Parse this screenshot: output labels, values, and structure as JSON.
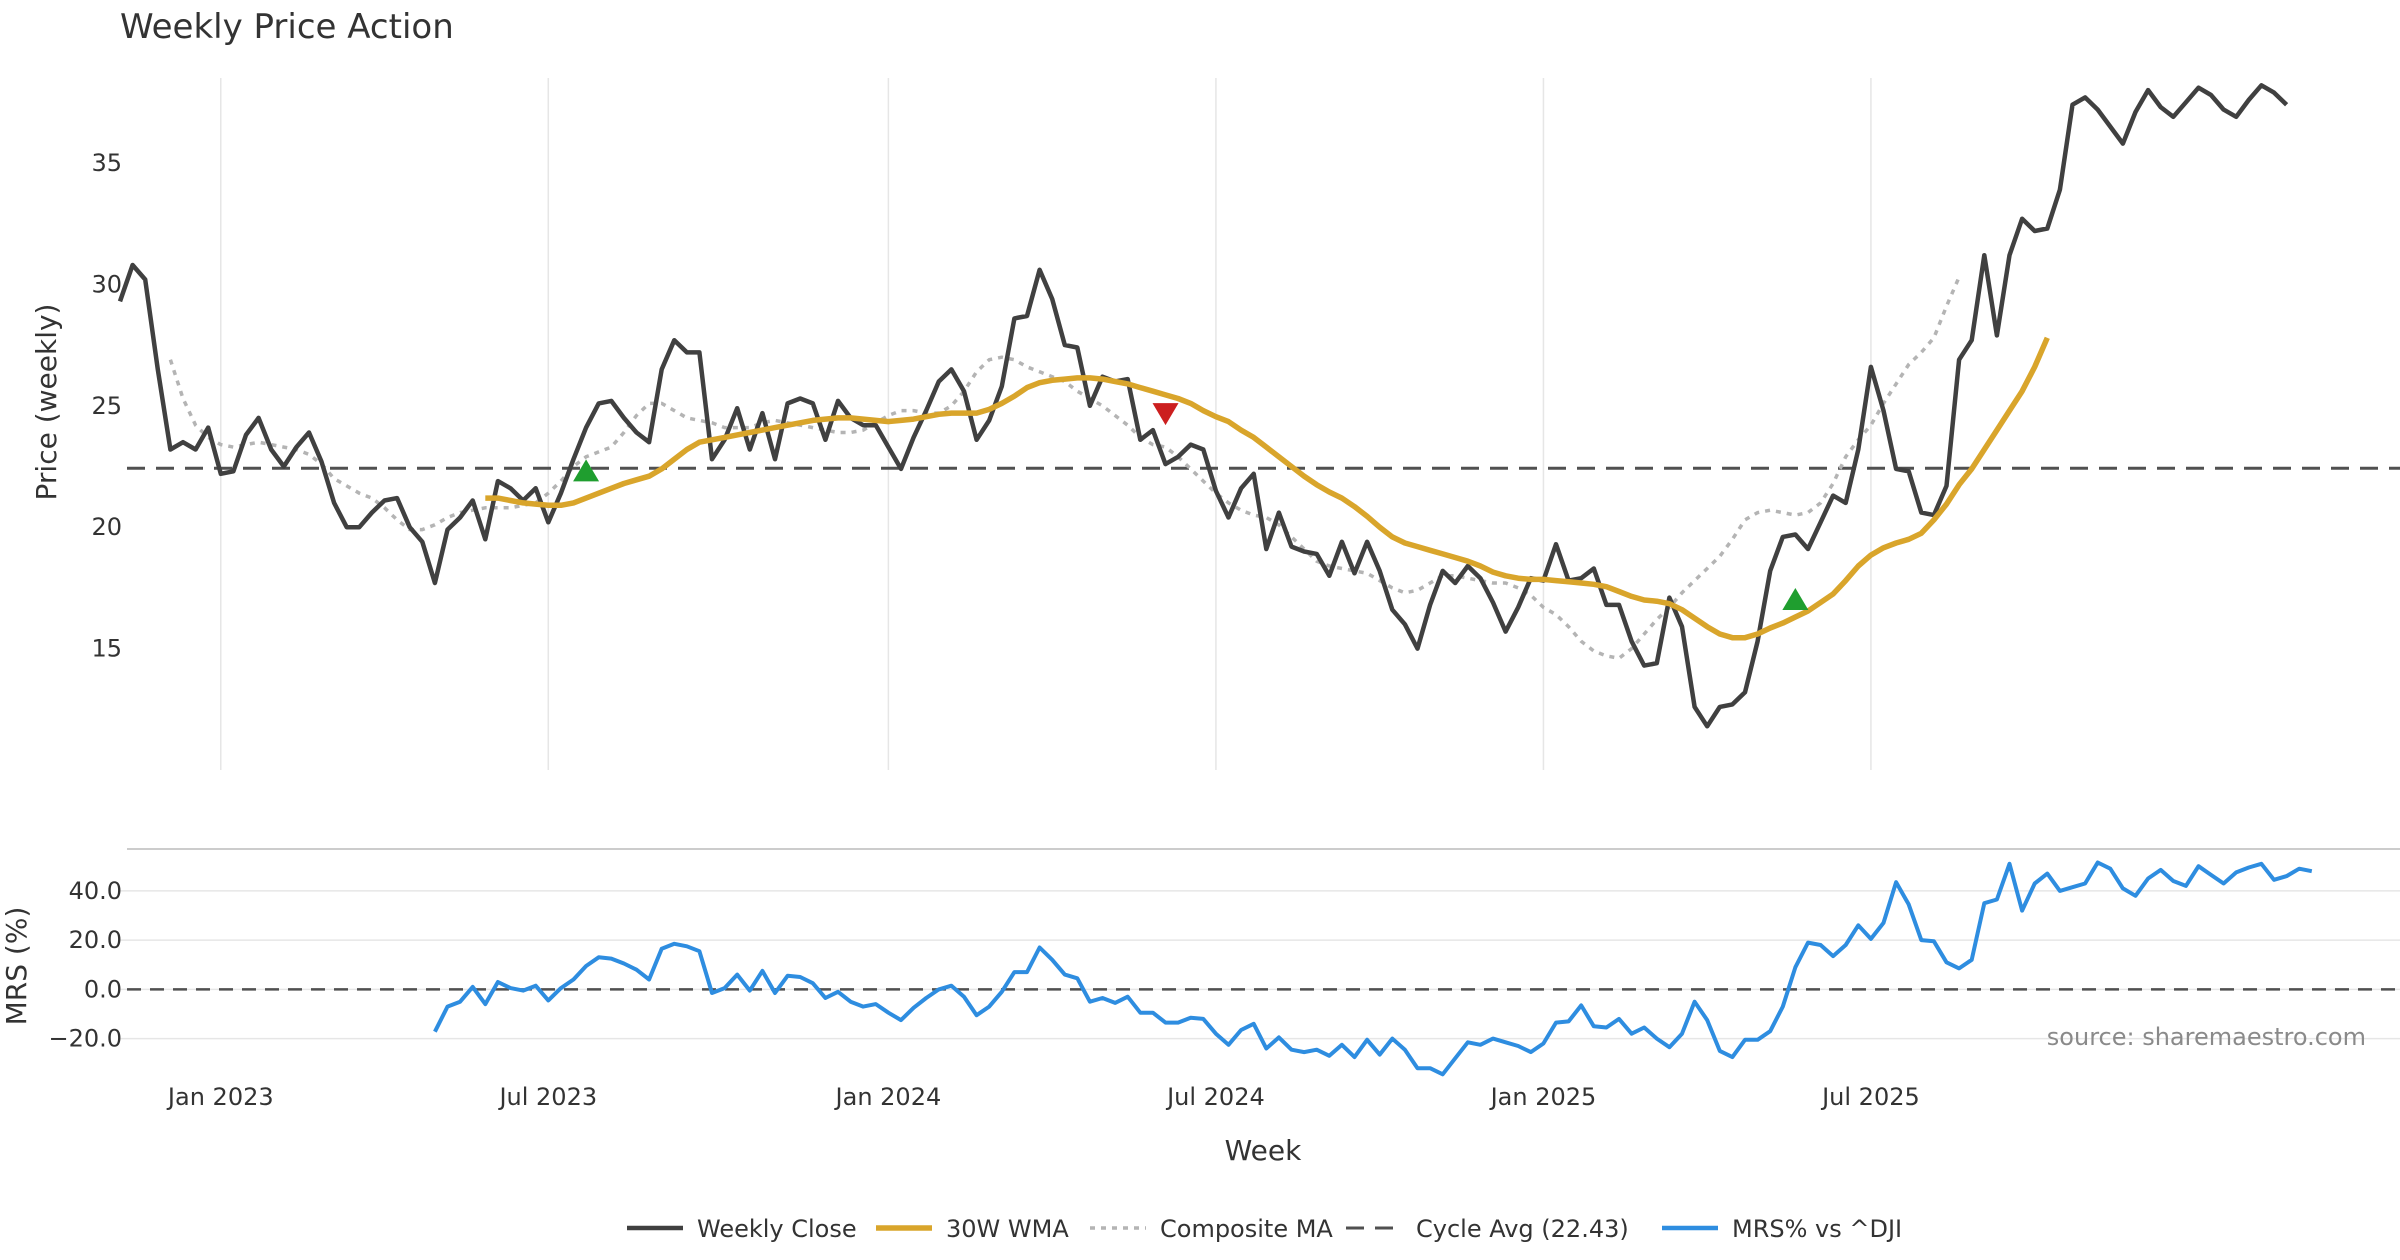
{
  "colors": {
    "close": "#404040",
    "wma": "#d9a52b",
    "composite": "#b4b4b4",
    "cycle": "#505050",
    "mrs": "#2e8de0",
    "buy": "#1f9e2f",
    "sell": "#cc1f1f",
    "grid": "#e6e6e6",
    "axis": "#cccccc"
  },
  "chart_data": [
    {
      "type": "line",
      "title": "Weekly Price Action",
      "xlabel": "Week",
      "ylabel": "Price (weekly)",
      "ylim": [
        10,
        38.5
      ],
      "yticks": [
        15,
        20,
        25,
        30,
        35
      ],
      "x_week_range": [
        0,
        181
      ],
      "cycle_avg": 22.43,
      "series": [
        {
          "name": "Weekly Close",
          "values": [
            29.3,
            30.8,
            30.2,
            26.5,
            23.2,
            23.5,
            23.2,
            24.1,
            22.2,
            22.3,
            23.8,
            24.5,
            23.2,
            22.5,
            23.3,
            23.9,
            22.7,
            21.0,
            20.0,
            20.0,
            20.6,
            21.1,
            21.2,
            20.0,
            19.4,
            17.7,
            19.9,
            20.4,
            21.1,
            19.5,
            21.9,
            21.6,
            21.1,
            21.6,
            20.2,
            21.4,
            22.8,
            24.1,
            25.1,
            25.2,
            24.5,
            23.9,
            23.5,
            26.5,
            27.7,
            27.2,
            27.2,
            22.8,
            23.6,
            24.9,
            23.2,
            24.7,
            22.8,
            25.1,
            25.3,
            25.1,
            23.6,
            25.2,
            24.5,
            24.2,
            24.2,
            23.3,
            22.4,
            23.7,
            24.8,
            26.0,
            26.5,
            25.6,
            23.6,
            24.4,
            25.8,
            28.6,
            28.7,
            30.6,
            29.4,
            27.5,
            27.4,
            25.0,
            26.2,
            26.0,
            26.1,
            23.6,
            24.0,
            22.6,
            22.9,
            23.4,
            23.2,
            21.5,
            20.4,
            21.6,
            22.2,
            19.1,
            20.6,
            19.2,
            19.0,
            18.9,
            18.0,
            19.4,
            18.1,
            19.4,
            18.2,
            16.6,
            16.0,
            15.0,
            16.8,
            18.2,
            17.7,
            18.4,
            17.9,
            16.9,
            15.7,
            16.7,
            17.9,
            17.8,
            19.3,
            17.8,
            17.9,
            18.3,
            16.8,
            16.8,
            15.3,
            14.3,
            14.4,
            17.1,
            15.9,
            12.6,
            11.8,
            12.6,
            12.7,
            13.2,
            15.3,
            18.2,
            19.6,
            19.7,
            19.1,
            20.2,
            21.3,
            21.0,
            23.2,
            26.6,
            24.8,
            22.4,
            22.3,
            20.6,
            20.5,
            21.7,
            26.9,
            27.7,
            31.2,
            27.9,
            31.2,
            32.7,
            32.2,
            32.3,
            33.9,
            37.4,
            37.7,
            37.2,
            36.5,
            35.8,
            37.1,
            38.0,
            37.3,
            36.9,
            37.5,
            38.1,
            37.8,
            37.2,
            36.9,
            37.6,
            38.2,
            37.9,
            37.4
          ]
        },
        {
          "name": "30W WMA",
          "start_index": 29,
          "values": [
            21.2,
            21.2,
            21.1,
            21.0,
            20.95,
            20.9,
            20.9,
            21.0,
            21.2,
            21.4,
            21.6,
            21.8,
            21.95,
            22.1,
            22.4,
            22.8,
            23.2,
            23.5,
            23.6,
            23.7,
            23.8,
            23.9,
            24.0,
            24.1,
            24.2,
            24.3,
            24.4,
            24.45,
            24.5,
            24.5,
            24.45,
            24.4,
            24.35,
            24.4,
            24.45,
            24.55,
            24.65,
            24.7,
            24.7,
            24.7,
            24.85,
            25.1,
            25.4,
            25.75,
            25.95,
            26.05,
            26.1,
            26.15,
            26.15,
            26.1,
            26.0,
            25.9,
            25.75,
            25.6,
            25.45,
            25.3,
            25.1,
            24.8,
            24.55,
            24.35,
            24.0,
            23.7,
            23.3,
            22.9,
            22.5,
            22.1,
            21.75,
            21.45,
            21.2,
            20.85,
            20.45,
            20.0,
            19.6,
            19.35,
            19.2,
            19.05,
            18.9,
            18.75,
            18.6,
            18.4,
            18.15,
            18.0,
            17.9,
            17.85,
            17.85,
            17.8,
            17.75,
            17.7,
            17.65,
            17.55,
            17.35,
            17.15,
            17.0,
            16.95,
            16.85,
            16.6,
            16.25,
            15.9,
            15.6,
            15.45,
            15.45,
            15.6,
            15.85,
            16.05,
            16.3,
            16.55,
            16.9,
            17.25,
            17.8,
            18.4,
            18.85,
            19.15,
            19.35,
            19.5,
            19.75,
            20.3,
            20.95,
            21.75,
            22.4,
            23.2,
            24.0,
            24.8,
            25.6,
            26.6,
            27.8
          ]
        },
        {
          "name": "Composite MA",
          "start_index": 4,
          "values": [
            26.9,
            25.3,
            24.2,
            23.7,
            23.4,
            23.3,
            23.4,
            23.5,
            23.4,
            23.3,
            23.2,
            23.0,
            22.6,
            22.0,
            21.7,
            21.4,
            21.2,
            20.8,
            20.3,
            19.9,
            19.9,
            20.1,
            20.4,
            20.6,
            20.7,
            20.8,
            20.8,
            20.8,
            20.9,
            21.0,
            21.4,
            21.9,
            22.5,
            22.9,
            23.1,
            23.3,
            23.9,
            24.6,
            25.1,
            25.1,
            24.8,
            24.5,
            24.4,
            24.3,
            24.1,
            24.1,
            24.1,
            24.3,
            24.4,
            24.3,
            24.2,
            24.1,
            24.0,
            23.9,
            23.9,
            24.0,
            24.3,
            24.6,
            24.8,
            24.8,
            24.7,
            24.7,
            25.0,
            25.6,
            26.4,
            26.9,
            27.0,
            26.9,
            26.6,
            26.4,
            26.2,
            26.0,
            25.6,
            25.3,
            25.0,
            24.6,
            24.2,
            23.7,
            23.4,
            23.3,
            22.9,
            22.4,
            21.9,
            21.4,
            21.0,
            20.7,
            20.5,
            20.4,
            20.1,
            19.6,
            19.1,
            18.6,
            18.4,
            18.3,
            18.2,
            18.1,
            17.8,
            17.5,
            17.3,
            17.4,
            17.7,
            18.0,
            18.0,
            17.9,
            17.8,
            17.7,
            17.7,
            17.5,
            17.2,
            16.7,
            16.4,
            15.9,
            15.3,
            14.9,
            14.7,
            14.6,
            15.0,
            15.6,
            16.2,
            16.7,
            17.3,
            17.8,
            18.3,
            18.8,
            19.5,
            20.3,
            20.6,
            20.7,
            20.6,
            20.5,
            20.6,
            21.0,
            21.8,
            22.9,
            23.6,
            24.2,
            25.1,
            25.9,
            26.7,
            27.2,
            27.8,
            29.1,
            30.3
          ]
        },
        {
          "name": "Cycle Avg (22.43)",
          "value": 22.43
        }
      ],
      "signals": [
        {
          "type": "buy",
          "week": 37,
          "value": 22.3
        },
        {
          "type": "sell",
          "week": 83,
          "value": 24.7
        },
        {
          "type": "buy",
          "week": 133,
          "value": 17.0
        }
      ]
    },
    {
      "type": "line",
      "title": "",
      "xlabel": "Week",
      "ylabel": "MRS (%)",
      "ylim": [
        -36,
        57
      ],
      "yticks": [
        -20,
        0,
        20,
        40
      ],
      "ytick_labels": [
        "−20.0",
        "0.0",
        "20.0",
        "40.0"
      ],
      "x_tick_labels": [
        "Jan 2023",
        "Jul 2023",
        "Jan 2024",
        "Jul 2024",
        "Jan 2025",
        "Jul 2025"
      ],
      "x_tick_weeks": [
        8,
        34,
        61,
        87,
        113,
        139
      ],
      "series": [
        {
          "name": "MRS% vs ^DJI",
          "start_index": 25,
          "values": [
            -17.2,
            -7.0,
            -5.0,
            1.0,
            -6.0,
            3.0,
            0.5,
            -0.5,
            1.5,
            -4.5,
            0.5,
            4.0,
            9.5,
            13.0,
            12.5,
            10.5,
            8.0,
            4.0,
            16.5,
            18.5,
            17.5,
            15.5,
            -1.5,
            0.5,
            6.0,
            -0.5,
            7.5,
            -1.5,
            5.5,
            5.0,
            2.5,
            -3.5,
            -1.0,
            -5.0,
            -7.0,
            -6.0,
            -9.5,
            -12.5,
            -7.5,
            -3.5,
            0.0,
            1.5,
            -3.0,
            -10.5,
            -7.0,
            -1.0,
            7.0,
            7.0,
            17.0,
            12.0,
            6.0,
            4.5,
            -5.0,
            -3.5,
            -5.5,
            -3.0,
            -9.5,
            -9.5,
            -13.5,
            -13.5,
            -11.5,
            -12.0,
            -18.0,
            -22.5,
            -16.5,
            -14.0,
            -24.0,
            -19.5,
            -24.5,
            -25.5,
            -24.5,
            -27.0,
            -22.5,
            -27.5,
            -20.5,
            -26.5,
            -20.0,
            -24.5,
            -32.0,
            -32.0,
            -34.5,
            -28.0,
            -21.5,
            -22.5,
            -20.0,
            -21.5,
            -23.0,
            -25.5,
            -22.0,
            -13.5,
            -13.0,
            -6.5,
            -15.0,
            -15.5,
            -12.0,
            -18.0,
            -15.5,
            -20.0,
            -23.5,
            -18.0,
            -5.0,
            -12.5,
            -25.0,
            -27.5,
            -20.5,
            -20.5,
            -17.0,
            -7.0,
            9.0,
            19.0,
            18.0,
            13.5,
            18.0,
            26.0,
            20.5,
            27.0,
            43.5,
            34.5,
            20.0,
            19.5,
            11.0,
            8.5,
            12.0,
            35.0,
            36.5,
            51.0,
            32.0,
            43.0,
            47.0,
            40.0,
            41.5,
            43.0,
            51.5,
            49.0,
            41.0,
            38.0,
            45.0,
            48.5,
            44.0,
            42.0,
            50.0,
            46.5,
            43.0,
            47.5,
            49.5,
            51.0,
            44.5,
            46.0,
            49.0,
            48.0
          ]
        }
      ]
    }
  ],
  "source": "source: sharemaestro.com",
  "legend": [
    {
      "key": "close",
      "label": "Weekly Close",
      "style": "solid"
    },
    {
      "key": "wma",
      "label": "30W WMA",
      "style": "solid"
    },
    {
      "key": "composite",
      "label": "Composite MA",
      "style": "dotted"
    },
    {
      "key": "cycle",
      "label": "Cycle Avg (22.43)",
      "style": "dashed"
    },
    {
      "key": "mrs",
      "label": "MRS% vs ^DJI",
      "style": "solid"
    }
  ]
}
